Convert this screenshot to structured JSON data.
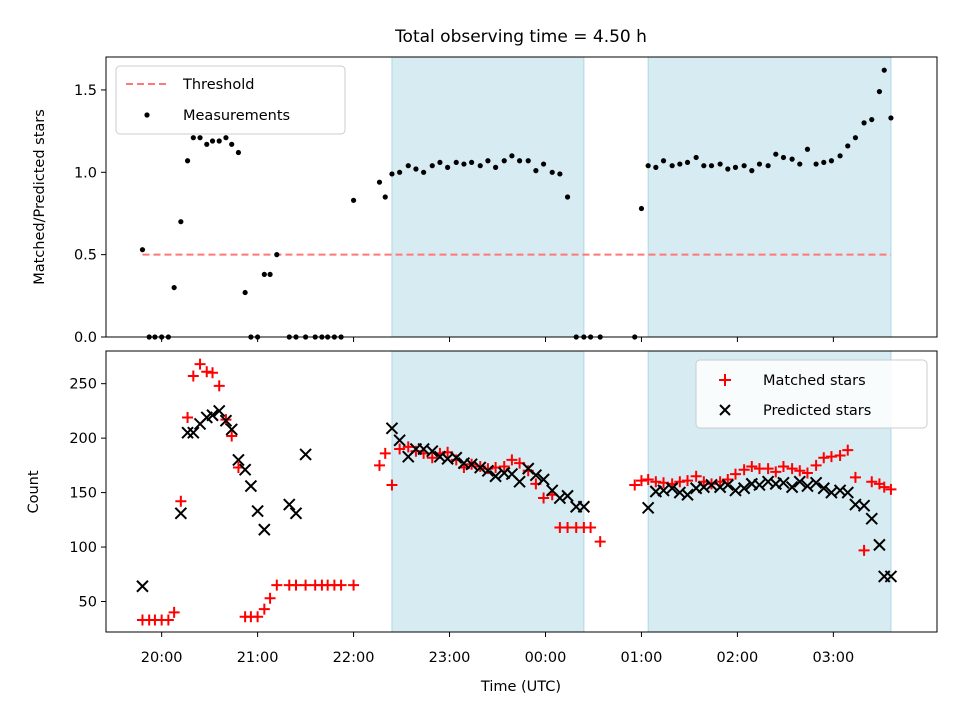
{
  "chart_data": {
    "title": "Total observing time = 4.50 h",
    "xlabel": "Time (UTC)",
    "x_tick_labels": [
      "20:00",
      "21:00",
      "22:00",
      "23:00",
      "00:00",
      "01:00",
      "02:00",
      "03:00"
    ],
    "x_ticks_hours": [
      20,
      21,
      22,
      23,
      24,
      25,
      26,
      27
    ],
    "xlim_hours": [
      19.42,
      28.08
    ],
    "shaded_intervals_hours": [
      [
        22.4,
        24.4
      ],
      [
        25.07,
        27.6
      ]
    ],
    "shade_color": "#add8e6",
    "panels": [
      {
        "type": "scatter",
        "ylabel": "Matched/Predicted stars",
        "ylim": [
          0,
          1.7
        ],
        "yticks": [
          0.0,
          0.5,
          1.0,
          1.5
        ],
        "ytick_labels": [
          "0.0",
          "0.5",
          "1.0",
          "1.5"
        ],
        "legend": "upper left",
        "threshold": {
          "name": "Threshold",
          "value": 0.5,
          "x_range_hours": [
            19.8,
            27.6
          ],
          "color": "#ff7777"
        },
        "series": [
          {
            "name": "Measurements",
            "marker": "dot",
            "color": "#000000",
            "x": [
              19.8,
              19.87,
              19.93,
              20.0,
              20.07,
              20.13,
              20.2,
              20.27,
              20.33,
              20.4,
              20.47,
              20.53,
              20.6,
              20.67,
              20.73,
              20.8,
              20.87,
              20.93,
              21.0,
              21.07,
              21.13,
              21.2,
              21.33,
              21.4,
              21.5,
              21.6,
              21.67,
              21.73,
              21.8,
              21.87,
              22.0,
              22.27,
              22.33,
              22.4,
              22.48,
              22.57,
              22.65,
              22.73,
              22.82,
              22.9,
              22.98,
              23.07,
              23.15,
              23.23,
              23.32,
              23.4,
              23.48,
              23.57,
              23.65,
              23.73,
              23.82,
              23.9,
              23.98,
              24.07,
              24.15,
              24.23,
              24.32,
              24.4,
              24.47,
              24.57,
              24.93,
              25.0,
              25.07,
              25.15,
              25.23,
              25.32,
              25.4,
              25.48,
              25.57,
              25.65,
              25.73,
              25.82,
              25.9,
              25.98,
              26.07,
              26.15,
              26.23,
              26.32,
              26.4,
              26.48,
              26.57,
              26.65,
              26.73,
              26.82,
              26.9,
              26.98,
              27.07,
              27.15,
              27.23,
              27.32,
              27.4,
              27.48,
              27.53,
              27.6
            ],
            "y": [
              0.53,
              0,
              0,
              0,
              0,
              0.3,
              0.7,
              1.07,
              1.21,
              1.21,
              1.17,
              1.19,
              1.19,
              1.21,
              1.17,
              1.12,
              0.27,
              0,
              0,
              0.38,
              0.38,
              0.5,
              0,
              0,
              0,
              0,
              0,
              0,
              0,
              0,
              0.83,
              0.94,
              0.85,
              0.99,
              1.0,
              1.04,
              1.02,
              1.0,
              1.04,
              1.06,
              1.03,
              1.06,
              1.05,
              1.06,
              1.04,
              1.07,
              1.03,
              1.07,
              1.1,
              1.07,
              1.07,
              1.01,
              1.05,
              1.0,
              0.99,
              0.85,
              0,
              0,
              0,
              0,
              0,
              0.78,
              1.04,
              1.03,
              1.07,
              1.04,
              1.05,
              1.06,
              1.09,
              1.04,
              1.04,
              1.05,
              1.02,
              1.03,
              1.04,
              1.01,
              1.05,
              1.04,
              1.11,
              1.09,
              1.08,
              1.05,
              1.14,
              1.05,
              1.06,
              1.07,
              1.1,
              1.16,
              1.21,
              1.3,
              1.32,
              1.49,
              1.62,
              1.33
            ]
          }
        ]
      },
      {
        "type": "scatter",
        "ylabel": "Count",
        "ylim": [
          22,
          280
        ],
        "yticks": [
          50,
          100,
          150,
          200,
          250
        ],
        "ytick_labels": [
          "50",
          "100",
          "150",
          "200",
          "250"
        ],
        "legend": "upper right",
        "series": [
          {
            "name": "Matched stars",
            "marker": "plus",
            "color": "#ff0000",
            "x": [
              19.8,
              19.87,
              19.93,
              20.0,
              20.07,
              20.13,
              20.2,
              20.27,
              20.33,
              20.4,
              20.47,
              20.53,
              20.6,
              20.67,
              20.73,
              20.8,
              20.87,
              20.93,
              21.0,
              21.07,
              21.13,
              21.2,
              21.33,
              21.4,
              21.5,
              21.6,
              21.67,
              21.73,
              21.8,
              21.87,
              22.0,
              22.27,
              22.33,
              22.4,
              22.48,
              22.57,
              22.65,
              22.73,
              22.82,
              22.9,
              22.98,
              23.07,
              23.15,
              23.23,
              23.32,
              23.4,
              23.48,
              23.57,
              23.65,
              23.73,
              23.82,
              23.9,
              23.98,
              24.07,
              24.15,
              24.23,
              24.32,
              24.4,
              24.47,
              24.57,
              24.93,
              25.0,
              25.07,
              25.15,
              25.23,
              25.32,
              25.4,
              25.48,
              25.57,
              25.65,
              25.73,
              25.82,
              25.9,
              25.98,
              26.07,
              26.15,
              26.23,
              26.32,
              26.4,
              26.48,
              26.57,
              26.65,
              26.73,
              26.82,
              26.9,
              26.98,
              27.07,
              27.15,
              27.23,
              27.32,
              27.4,
              27.48,
              27.53,
              27.6
            ],
            "y": [
              33,
              33,
              33,
              33,
              33,
              40,
              142,
              219,
              257,
              268,
              261,
              260,
              248,
              217,
              202,
              173,
              36,
              36,
              36,
              43,
              53,
              65,
              65,
              65,
              65,
              65,
              65,
              65,
              65,
              65,
              65,
              175,
              186,
              157,
              190,
              192,
              188,
              186,
              182,
              186,
              187,
              180,
              173,
              176,
              174,
              172,
              173,
              174,
              180,
              177,
              170,
              158,
              145,
              148,
              118,
              118,
              118,
              118,
              118,
              105,
              157,
              161,
              162,
              160,
              159,
              158,
              160,
              161,
              165,
              160,
              158,
              160,
              162,
              167,
              171,
              174,
              172,
              172,
              169,
              174,
              172,
              170,
              168,
              175,
              182,
              183,
              184,
              189,
              164,
              97,
              160,
              158,
              155,
              153
            ],
            "x_note": ""
          },
          {
            "name": "Predicted stars",
            "marker": "x",
            "color": "#000000",
            "x": [
              19.8,
              20.2,
              20.27,
              20.33,
              20.4,
              20.47,
              20.53,
              20.6,
              20.67,
              20.73,
              20.8,
              20.87,
              20.93,
              21.0,
              21.07,
              21.33,
              21.4,
              21.5,
              22.4,
              22.48,
              22.57,
              22.65,
              22.73,
              22.82,
              22.9,
              22.98,
              23.07,
              23.15,
              23.23,
              23.32,
              23.4,
              23.48,
              23.57,
              23.65,
              23.73,
              23.82,
              23.9,
              23.98,
              24.07,
              24.15,
              24.23,
              24.32,
              24.4,
              25.07,
              25.15,
              25.23,
              25.32,
              25.4,
              25.48,
              25.57,
              25.65,
              25.73,
              25.82,
              25.9,
              25.98,
              26.07,
              26.15,
              26.23,
              26.32,
              26.4,
              26.48,
              26.57,
              26.65,
              26.73,
              26.82,
              26.9,
              26.98,
              27.07,
              27.15,
              27.23,
              27.32,
              27.4,
              27.48,
              27.53,
              27.6
            ],
            "y": [
              64,
              131,
              205,
              205,
              213,
              219,
              221,
              225,
              216,
              208,
              180,
              171,
              156,
              133,
              116,
              139,
              131,
              185,
              209,
              198,
              183,
              190,
              190,
              188,
              183,
              181,
              182,
              177,
              176,
              173,
              170,
              165,
              168,
              167,
              160,
              172,
              166,
              162,
              152,
              145,
              147,
              137,
              137,
              136,
              151,
              152,
              154,
              150,
              148,
              154,
              155,
              157,
              155,
              157,
              152,
              154,
              158,
              157,
              160,
              158,
              159,
              155,
              160,
              156,
              159,
              154,
              150,
              152,
              150,
              139,
              138,
              126,
              102,
              73,
              73
            ]
          }
        ]
      }
    ]
  }
}
